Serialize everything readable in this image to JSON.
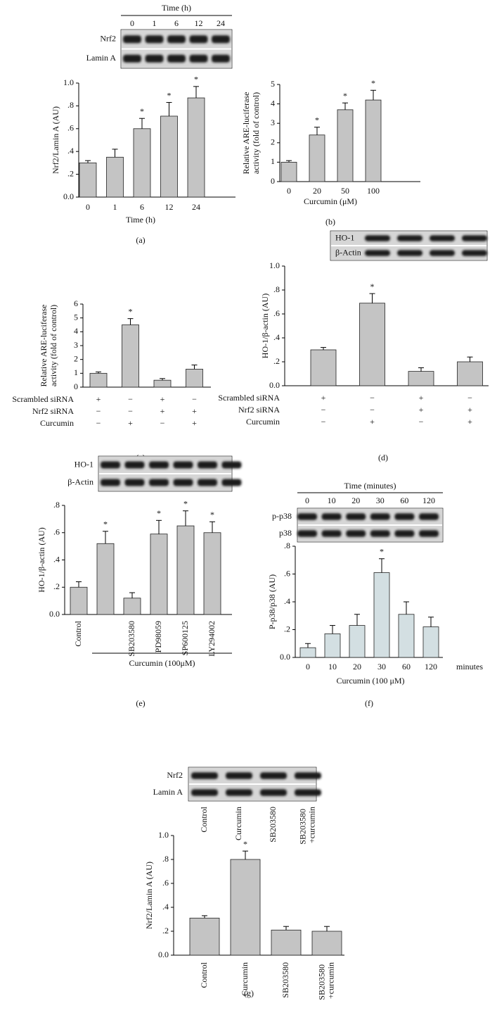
{
  "chart_data": [
    {
      "type": "bar",
      "panel_label": "(a)",
      "y_label": [
        "Nrf2/Lamin A (AU)"
      ],
      "x_label": "Time (h)",
      "categories": [
        "0",
        "1",
        "6",
        "12",
        "24"
      ],
      "values": [
        0.3,
        0.35,
        0.6,
        0.71,
        0.87
      ],
      "errors": [
        0.02,
        0.07,
        0.09,
        0.12,
        0.1
      ],
      "significance": [
        null,
        null,
        "*",
        "*",
        "*"
      ],
      "color": "#c4c4c4",
      "ylim": [
        0,
        1
      ],
      "yticks": [
        {
          "value": 0,
          "label": "0.0"
        },
        {
          "value": 0.2,
          "label": ".2"
        },
        {
          "value": 0.4,
          "label": ".4"
        },
        {
          "value": 0.6,
          "label": ".6"
        },
        {
          "value": 0.8,
          "label": ".8"
        },
        {
          "value": 1,
          "label": "1.0"
        }
      ],
      "blot": {
        "title": "Time (h)",
        "rows": [
          "Nrf2",
          "Lamin A"
        ]
      }
    },
    {
      "type": "bar",
      "panel_label": "(b)",
      "y_label": [
        "Relative ARE-luciferase",
        "activity (fold of control)"
      ],
      "x_label": "Curcumin (μM)",
      "categories": [
        "0",
        "20",
        "50",
        "100"
      ],
      "values": [
        1.0,
        2.4,
        3.7,
        4.2
      ],
      "errors": [
        0.08,
        0.4,
        0.35,
        0.5
      ],
      "significance": [
        null,
        "*",
        "*",
        "*"
      ],
      "color": "#c4c4c4",
      "ylim": [
        0,
        5
      ],
      "yticks": [
        0,
        1,
        2,
        3,
        4,
        5
      ]
    },
    {
      "type": "bar",
      "panel_label": "(c)",
      "y_label": [
        "Relative ARE-luciferase",
        "activity (fold of control)"
      ],
      "values": [
        1.0,
        4.5,
        0.5,
        1.3
      ],
      "errors": [
        0.1,
        0.45,
        0.12,
        0.3
      ],
      "significance": [
        null,
        "*",
        null,
        null
      ],
      "color": "#c4c4c4",
      "ylim": [
        0,
        6
      ],
      "yticks": [
        0,
        1,
        2,
        3,
        4,
        5,
        6
      ],
      "treatments": [
        {
          "name": "Scrambled siRNA",
          "signs": [
            "+",
            "−",
            "+",
            "−"
          ]
        },
        {
          "name": "Nrf2 siRNA",
          "signs": [
            "−",
            "−",
            "+",
            "+"
          ]
        },
        {
          "name": "Curcumin",
          "signs": [
            "−",
            "+",
            "−",
            "+"
          ]
        }
      ]
    },
    {
      "type": "bar",
      "panel_label": "(d)",
      "y_label": [
        "HO-1/β-actin (AU)"
      ],
      "values": [
        0.3,
        0.69,
        0.12,
        0.2
      ],
      "errors": [
        0.02,
        0.08,
        0.03,
        0.04
      ],
      "significance": [
        null,
        "*",
        null,
        null
      ],
      "color": "#c4c4c4",
      "ylim": [
        0,
        1
      ],
      "yticks": [
        {
          "value": 0,
          "label": "0.0"
        },
        {
          "value": 0.2,
          "label": ".2"
        },
        {
          "value": 0.4,
          "label": ".4"
        },
        {
          "value": 0.6,
          "label": ".6"
        },
        {
          "value": 0.8,
          "label": ".8"
        },
        {
          "value": 1,
          "label": "1.0"
        }
      ],
      "treatments": [
        {
          "name": "Scrambled siRNA",
          "signs": [
            "+",
            "−",
            "+",
            "−"
          ]
        },
        {
          "name": "Nrf2 siRNA",
          "signs": [
            "−",
            "−",
            "+",
            "+"
          ]
        },
        {
          "name": "Curcumin",
          "signs": [
            "−",
            "+",
            "−",
            "+"
          ]
        }
      ],
      "blot": {
        "rows": [
          "HO-1",
          "β-Actin"
        ]
      }
    },
    {
      "type": "bar",
      "panel_label": "(e)",
      "y_label": [
        "HO-1/β-actin (AU)"
      ],
      "group_label": "Curcumin (100μM)",
      "categories": [
        "Control",
        null,
        "SB203580",
        "PD98059",
        "SP600125",
        "LY294002"
      ],
      "values": [
        0.2,
        0.52,
        0.12,
        0.59,
        0.65,
        0.6
      ],
      "errors": [
        0.04,
        0.09,
        0.04,
        0.1,
        0.11,
        0.08
      ],
      "significance": [
        null,
        "*",
        null,
        "*",
        "*",
        "*"
      ],
      "color": "#c4c4c4",
      "ylim": [
        0,
        0.8
      ],
      "yticks": [
        {
          "value": 0,
          "label": "0.0"
        },
        {
          "value": 0.2,
          "label": ".2"
        },
        {
          "value": 0.4,
          "label": ".4"
        },
        {
          "value": 0.6,
          "label": ".6"
        },
        {
          "value": 0.8,
          "label": ".8"
        }
      ],
      "blot": {
        "rows": [
          "HO-1",
          "β-Actin"
        ]
      }
    },
    {
      "type": "bar",
      "panel_label": "(f)",
      "y_label": [
        "P-p38/p38 (AU)"
      ],
      "x_label": "Curcumin (100 μM)",
      "x_unit": "minutes",
      "categories": [
        "0",
        "10",
        "20",
        "30",
        "60",
        "120"
      ],
      "values": [
        0.07,
        0.17,
        0.23,
        0.61,
        0.31,
        0.22
      ],
      "errors": [
        0.03,
        0.06,
        0.08,
        0.1,
        0.09,
        0.07
      ],
      "significance": [
        null,
        null,
        null,
        "*",
        null,
        null
      ],
      "color": "#d3dfe2",
      "ylim": [
        0,
        0.8
      ],
      "yticks": [
        {
          "value": 0,
          "label": "0.0"
        },
        {
          "value": 0.2,
          "label": ".2"
        },
        {
          "value": 0.4,
          "label": ".4"
        },
        {
          "value": 0.6,
          "label": ".6"
        },
        {
          "value": 0.8,
          "label": ".8"
        }
      ],
      "blot": {
        "title": "Time (minutes)",
        "rows": [
          "p-p38",
          "p38"
        ]
      }
    },
    {
      "type": "bar",
      "panel_label": "(g)",
      "y_label": [
        "Nrf2/Lamin A (AU)"
      ],
      "categories": [
        "Control",
        "Curcumin",
        "SB203580",
        "SB203580 +curcumin"
      ],
      "values": [
        0.31,
        0.8,
        0.21,
        0.2
      ],
      "errors": [
        0.02,
        0.07,
        0.03,
        0.04
      ],
      "significance": [
        null,
        "*",
        null,
        null
      ],
      "color": "#c4c4c4",
      "ylim": [
        0,
        1
      ],
      "yticks": [
        {
          "value": 0,
          "label": "0.0"
        },
        {
          "value": 0.2,
          "label": ".2"
        },
        {
          "value": 0.4,
          "label": ".4"
        },
        {
          "value": 0.6,
          "label": ".6"
        },
        {
          "value": 0.8,
          "label": ".8"
        },
        {
          "value": 1,
          "label": "1.0"
        }
      ],
      "blot": {
        "rows": [
          "Nrf2",
          "Lamin A"
        ]
      }
    }
  ]
}
